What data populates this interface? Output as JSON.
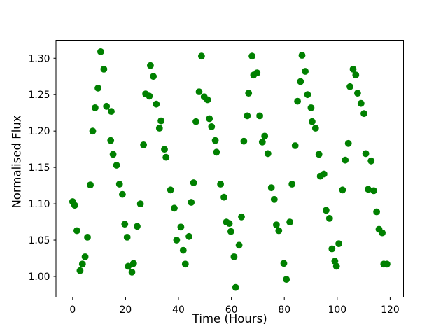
{
  "chart_data": {
    "type": "scatter",
    "title": "",
    "xlabel": "Time (Hours)",
    "ylabel": "Normalised Flux",
    "xlim": [
      -6.3,
      125.05
    ],
    "ylim": [
      0.9716,
      1.3248
    ],
    "xticks": [
      0,
      20,
      40,
      60,
      80,
      100,
      120
    ],
    "yticks": [
      1.0,
      1.05,
      1.1,
      1.15,
      1.2,
      1.25,
      1.3
    ],
    "grid": false,
    "legend": "none",
    "marker": "circle",
    "marker_color": "#008000",
    "axis_color": "#000000",
    "background_color": "#ffffff",
    "series": [
      {
        "name": "normalised-flux-vs-time",
        "x": [
          0.0,
          0.8,
          1.6,
          2.8,
          3.7,
          4.7,
          5.6,
          6.7,
          7.6,
          8.5,
          9.6,
          10.6,
          11.8,
          12.8,
          14.4,
          14.6,
          15.3,
          16.6,
          17.7,
          18.8,
          19.7,
          20.6,
          21.0,
          22.4,
          23.0,
          24.4,
          25.6,
          26.8,
          27.6,
          29.0,
          29.4,
          30.5,
          31.6,
          32.8,
          33.4,
          34.7,
          35.3,
          37.0,
          38.4,
          39.3,
          40.9,
          41.8,
          42.6,
          44.0,
          44.8,
          45.7,
          46.6,
          47.8,
          48.7,
          49.7,
          51.0,
          51.7,
          52.5,
          53.9,
          54.4,
          55.9,
          57.2,
          58.1,
          59.2,
          59.8,
          61.0,
          61.6,
          62.9,
          63.8,
          64.7,
          66.0,
          66.5,
          67.8,
          68.4,
          69.7,
          70.7,
          71.7,
          72.6,
          73.8,
          75.1,
          76.2,
          77.0,
          77.9,
          79.8,
          80.8,
          82.1,
          82.9,
          84.1,
          85.0,
          86.1,
          86.7,
          87.9,
          88.8,
          90.1,
          90.5,
          91.8,
          93.1,
          93.6,
          95.0,
          95.8,
          97.1,
          98.0,
          99.1,
          99.7,
          100.6,
          102.0,
          103.0,
          104.2,
          104.8,
          106.0,
          107.0,
          107.7,
          109.0,
          110.1,
          110.8,
          111.7,
          112.8,
          113.8,
          114.9,
          115.8,
          117.0,
          117.6,
          118.8
        ],
        "y": [
          1.103,
          1.098,
          1.063,
          1.008,
          1.017,
          1.027,
          1.054,
          1.126,
          1.2,
          1.232,
          1.259,
          1.309,
          1.285,
          1.234,
          1.187,
          1.227,
          1.168,
          1.153,
          1.127,
          1.113,
          1.072,
          1.054,
          1.014,
          1.006,
          1.018,
          1.069,
          1.1,
          1.181,
          1.251,
          1.248,
          1.29,
          1.275,
          1.237,
          1.204,
          1.214,
          1.175,
          1.164,
          1.119,
          1.094,
          1.05,
          1.068,
          1.036,
          1.017,
          1.055,
          1.102,
          1.129,
          1.213,
          1.254,
          1.303,
          1.247,
          1.243,
          1.217,
          1.206,
          1.187,
          1.171,
          1.127,
          1.109,
          1.075,
          1.073,
          1.062,
          1.027,
          0.985,
          1.043,
          1.082,
          1.186,
          1.221,
          1.252,
          1.303,
          1.277,
          1.28,
          1.221,
          1.185,
          1.193,
          1.169,
          1.122,
          1.106,
          1.071,
          1.063,
          1.018,
          0.996,
          1.075,
          1.127,
          1.18,
          1.241,
          1.268,
          1.304,
          1.282,
          1.25,
          1.232,
          1.213,
          1.204,
          1.168,
          1.138,
          1.141,
          1.091,
          1.08,
          1.038,
          1.021,
          1.014,
          1.045,
          1.119,
          1.16,
          1.183,
          1.261,
          1.285,
          1.277,
          1.252,
          1.238,
          1.224,
          1.169,
          1.12,
          1.159,
          1.118,
          1.089,
          1.065,
          1.06,
          1.017,
          1.017
        ]
      }
    ]
  }
}
